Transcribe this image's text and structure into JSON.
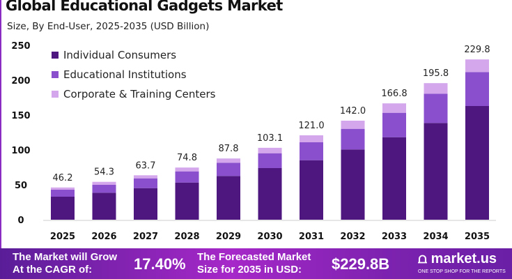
{
  "chart_data": {
    "type": "bar",
    "stacked": true,
    "title": "Global Educational Gadgets Market",
    "subtitle": "Size, By End-User, 2025-2035 (USD Billion)",
    "categories": [
      "2025",
      "2026",
      "2027",
      "2028",
      "2029",
      "2030",
      "2031",
      "2032",
      "2033",
      "2034",
      "2035"
    ],
    "series": [
      {
        "name": "Individual Consumers",
        "color": "#4e1780",
        "values": [
          33.0,
          38.7,
          45.3,
          53.3,
          62.7,
          74.0,
          85.3,
          100.7,
          118.3,
          138.7,
          163.0
        ]
      },
      {
        "name": "Educational Institutions",
        "color": "#8a4fcc",
        "values": [
          10.0,
          11.3,
          14.0,
          16.0,
          19.0,
          21.3,
          25.7,
          29.6,
          35.0,
          42.0,
          48.7
        ]
      },
      {
        "name": "Corporate & Training Centers",
        "color": "#d4a6ec",
        "values": [
          3.2,
          4.3,
          4.4,
          5.5,
          6.1,
          7.8,
          10.0,
          11.7,
          13.5,
          15.1,
          18.1
        ]
      }
    ],
    "totals": [
      "46.2",
      "54.3",
      "63.7",
      "74.8",
      "87.8",
      "103.1",
      "121.0",
      "142.0",
      "166.8",
      "195.8",
      "229.8"
    ],
    "yticks": [
      0,
      50,
      100,
      150,
      200,
      250
    ],
    "ylim": [
      0,
      250
    ],
    "grid": false,
    "legend": "top-left"
  },
  "banner": {
    "cagr_label_1": "The Market will Grow",
    "cagr_label_2": "At the CAGR of:",
    "cagr_value": "17.40%",
    "forecast_label_1": "The Forecasted Market",
    "forecast_label_2": "Size for 2035 in USD:",
    "forecast_value": "$229.8B",
    "logo_text": "market.us",
    "logo_tagline": "ONE STOP SHOP FOR THE REPORTS"
  }
}
